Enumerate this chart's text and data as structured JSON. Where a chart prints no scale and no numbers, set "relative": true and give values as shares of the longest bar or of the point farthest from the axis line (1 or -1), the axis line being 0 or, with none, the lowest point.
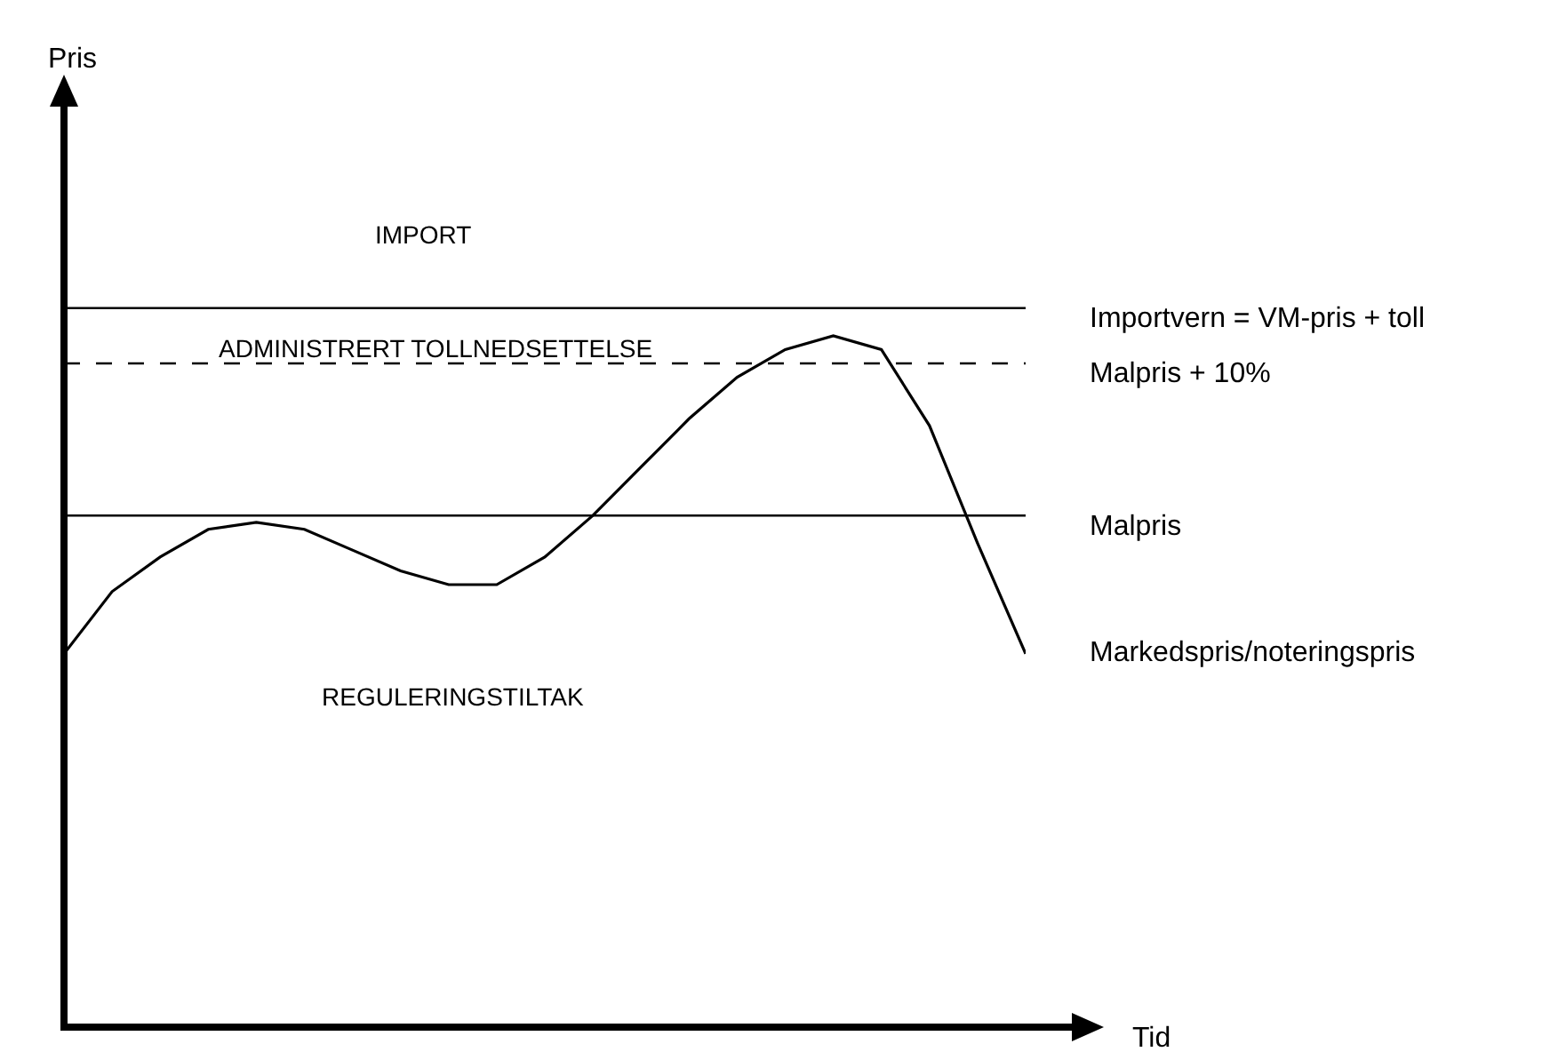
{
  "chart_data": {
    "type": "line",
    "relative": true,
    "xlabel": "Tid",
    "categories": [
      null,
      null,
      null,
      null,
      null,
      null,
      null,
      null,
      null,
      null,
      null,
      null,
      null,
      null,
      null,
      null,
      null,
      null,
      null,
      null,
      null
    ],
    "series": [
      {
        "name": "Markedspris/noteringspris",
        "color": "#000000",
        "values": [
          0.54,
          0.63,
          0.68,
          0.72,
          0.73,
          0.72,
          0.69,
          0.66,
          0.64,
          0.64,
          0.68,
          0.74,
          0.81,
          0.88,
          0.94,
          0.98,
          1,
          0.98,
          0.87,
          0.7,
          0.54
        ]
      }
    ],
    "ref_lines": [
      {
        "axis": "y",
        "value": 1.04,
        "label": "Importvern = VM-pris + toll",
        "color": "#000000",
        "line_style": "solid"
      },
      {
        "axis": "y",
        "value": 0.96,
        "label": "Malpris + 10%",
        "color": "#000000",
        "line_style": "dashed"
      },
      {
        "axis": "y",
        "value": 0.74,
        "label": "Malpris",
        "color": "#000000",
        "line_style": "solid"
      }
    ],
    "annotations": [
      "IMPORT",
      "ADMINISTRERT TOLLNEDSETTELSE",
      "REGULERINGSTILTAK",
      "Pris"
    ],
    "legend": false,
    "grid": false
  }
}
